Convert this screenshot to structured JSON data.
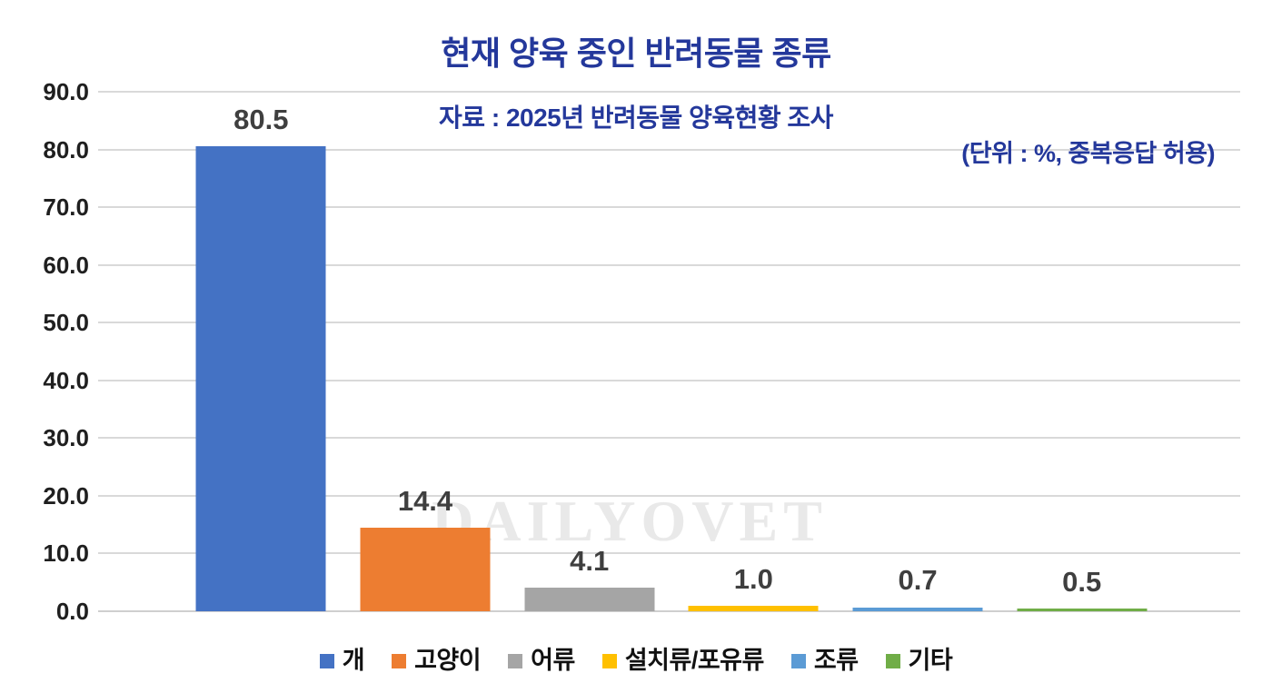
{
  "chart_data": {
    "type": "bar",
    "title": "현재 양육 중인 반려동물 종류",
    "subtitle": "자료 : 2025년 반려동물 양육현황 조사",
    "unit_note": "(단위 : %, 중복응답 허용)",
    "watermark": "DAILYOVET",
    "categories": [
      "개",
      "고양이",
      "어류",
      "설치류/포유류",
      "조류",
      "기타"
    ],
    "values": [
      80.5,
      14.4,
      4.1,
      1.0,
      0.7,
      0.5
    ],
    "value_labels": [
      "80.5",
      "14.4",
      "4.1",
      "1.0",
      "0.7",
      "0.5"
    ],
    "bar_colors": [
      "#4472C4",
      "#ED7D31",
      "#A5A5A5",
      "#FFC000",
      "#5B9BD5",
      "#70AD47"
    ],
    "ylim": [
      0,
      90
    ],
    "ytick_step": 10,
    "ytick_labels": [
      "0.0",
      "10.0",
      "20.0",
      "30.0",
      "40.0",
      "50.0",
      "60.0",
      "70.0",
      "80.0",
      "90.0"
    ],
    "grid": true,
    "legend_position": "bottom",
    "legend": [
      "개",
      "고양이",
      "어류",
      "설치류/포유류",
      "조류",
      "기타"
    ],
    "colors": {
      "heading_blue": "#24389B",
      "value_label_gray": "#3F3F3F",
      "gridline_gray": "#D9D9D9",
      "watermark_gray": "#E9E9E9"
    }
  }
}
